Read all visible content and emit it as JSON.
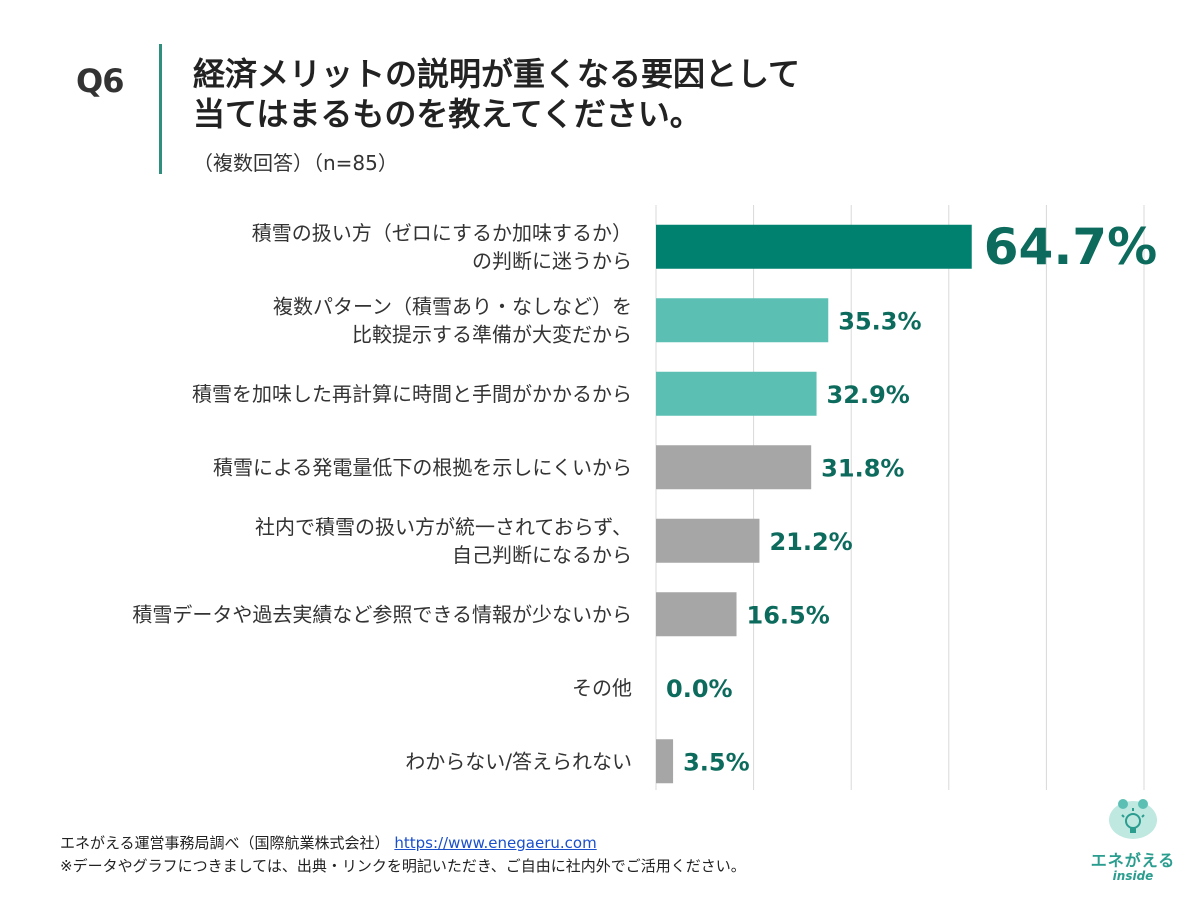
{
  "header": {
    "question_no": "Q6",
    "title_line1": "経済メリットの説明が重くなる要因として",
    "title_line2": "当てはまるものを教えてください。",
    "subtitle": "（複数回答）（n=85）"
  },
  "colors": {
    "top": "#00806e",
    "teal": "#5bbfb4",
    "gray": "#a6a6a6",
    "grid": "#d9d9d9",
    "label": "#0c6b5c"
  },
  "chart_data": {
    "type": "bar",
    "orientation": "horizontal",
    "title": "経済メリットの説明が重くなる要因として当てはまるものを教えてください。",
    "categories": [
      [
        "積雪の扱い方（ゼロにするか加味するか）",
        "の判断に迷うから"
      ],
      [
        "複数パターン（積雪あり・なしなど）を",
        "比較提示する準備が大変だから"
      ],
      [
        "積雪を加味した再計算に時間と手間がかかるから"
      ],
      [
        "積雪による発電量低下の根拠を示しにくいから"
      ],
      [
        "社内で積雪の扱い方が統一されておらず、",
        "自己判断になるから"
      ],
      [
        "積雪データや過去実績など参照できる情報が少ないから"
      ],
      [
        "その他"
      ],
      [
        "わからない/答えられない"
      ]
    ],
    "values": [
      64.7,
      35.3,
      32.9,
      31.8,
      21.2,
      16.5,
      0.0,
      3.5
    ],
    "value_labels": [
      "64.7%",
      "35.3%",
      "32.9%",
      "31.8%",
      "21.2%",
      "16.5%",
      "0.0%",
      "3.5%"
    ],
    "bar_color_keys": [
      "top",
      "teal",
      "teal",
      "gray",
      "gray",
      "gray",
      "gray",
      "gray"
    ],
    "xlim": [
      0,
      100
    ],
    "grid": true,
    "unit": "%"
  },
  "footer": {
    "source": "エネがえる運営事務局調べ（国際航業株式会社）",
    "url": "https://www.enegaeru.com",
    "note": "※データやグラフにつきましては、出典・リンクを明記いただき、ご自由に社内外でご活用ください。"
  },
  "logo": {
    "name": "エネがえる",
    "sub": "inside"
  }
}
